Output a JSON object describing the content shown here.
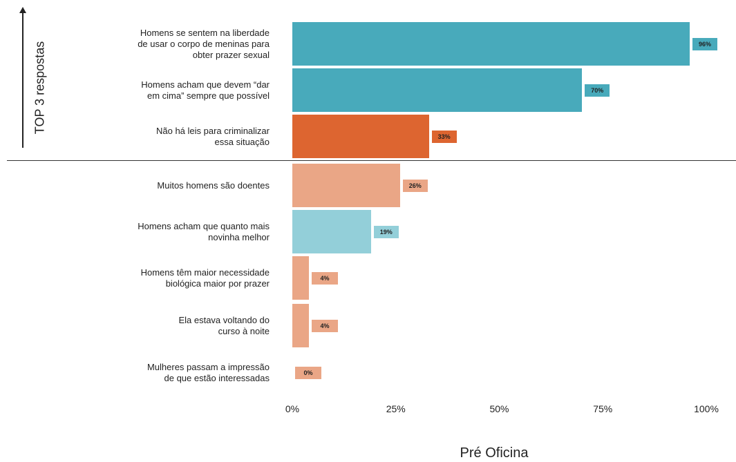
{
  "chart_data": {
    "type": "bar",
    "orientation": "horizontal",
    "categories": [
      "Homens se sentem na liberdade\nde usar o corpo de meninas para\nobter prazer sexual",
      "Homens acham que devem “dar\nem cima” sempre que possível",
      "Não há leis para criminalizar\nessa situação",
      "Muitos homens são doentes",
      "Homens acham que quanto mais\nnovinha melhor",
      "Homens têm maior necessidade\nbiológica maior por prazer",
      "Ela estava voltando do\ncurso à noite",
      "Mulheres passam a impressão\nde que estão interessadas"
    ],
    "values": [
      96,
      70,
      33,
      26,
      19,
      4,
      4,
      0
    ],
    "data_labels": [
      "96%",
      "70%",
      "33%",
      "26%",
      "19%",
      "4%",
      "4%",
      "0%"
    ],
    "colors": [
      "#48aabb",
      "#48aabb",
      "#dd6530",
      "#eaa686",
      "#93cfd9",
      "#eaa686",
      "#eaa686",
      "#eaa686"
    ],
    "x_ticks": [
      "0%",
      "25%",
      "50%",
      "75%",
      "100%"
    ],
    "xlim": [
      0,
      100
    ],
    "xlabel": "Pré Oficina",
    "ylabel": "TOP 3 respostas",
    "top_group_size": 3,
    "grid": false,
    "legend": "none"
  }
}
